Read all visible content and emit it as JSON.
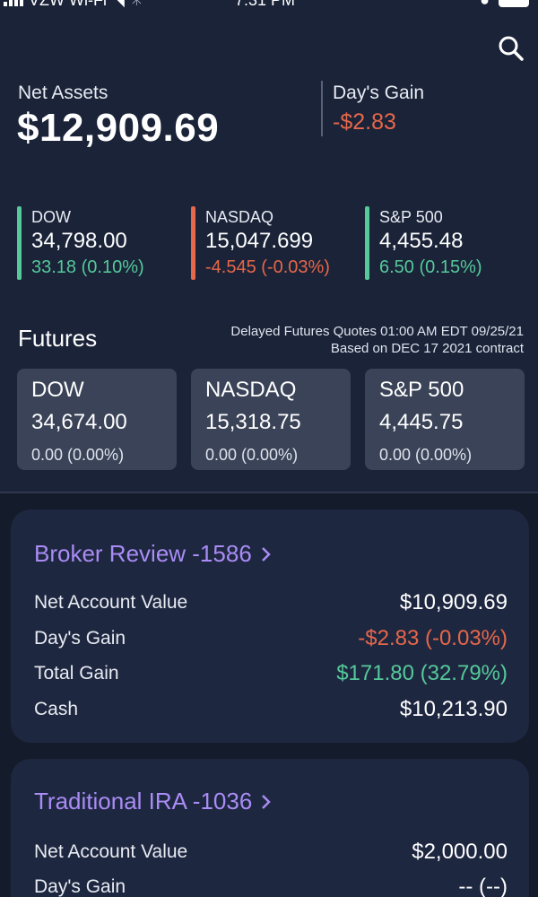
{
  "status_bar": {
    "carrier": "VZW Wi-Fi",
    "time": "7:31 PM"
  },
  "summary": {
    "net_assets_label": "Net Assets",
    "net_assets_value": "$12,909.69",
    "days_gain_label": "Day's Gain",
    "days_gain_value": "-$2.83"
  },
  "indices": [
    {
      "name": "DOW",
      "value": "34,798.00",
      "change": "33.18 (0.10%)",
      "color": "#55c99a"
    },
    {
      "name": "NASDAQ",
      "value": "15,047.699",
      "change": "-4.545 (-0.03%)",
      "color": "#e6674a"
    },
    {
      "name": "S&P 500",
      "value": "4,455.48",
      "change": "6.50 (0.15%)",
      "color": "#55c99a"
    }
  ],
  "futures": {
    "title": "Futures",
    "note_line1": "Delayed Futures Quotes 01:00 AM EDT 09/25/21",
    "note_line2": "Based on DEC 17 2021 contract",
    "cards": [
      {
        "name": "DOW",
        "value": "34,674.00",
        "change": "0.00 (0.00%)"
      },
      {
        "name": "NASDAQ",
        "value": "15,318.75",
        "change": "0.00 (0.00%)"
      },
      {
        "name": "S&P 500",
        "value": "4,445.75",
        "change": "0.00 (0.00%)"
      }
    ]
  },
  "accounts": [
    {
      "title": "Broker Review -1586",
      "rows": [
        {
          "label": "Net Account Value",
          "value": "$10,909.69"
        },
        {
          "label": "Day's Gain",
          "value": "-$2.83 (-0.03%)"
        },
        {
          "label": "Total Gain",
          "value": "$171.80 (32.79%)"
        },
        {
          "label": "Cash",
          "value": "$10,213.90"
        }
      ]
    },
    {
      "title": "Traditional IRA -1036",
      "rows": [
        {
          "label": "Net Account Value",
          "value": "$2,000.00"
        },
        {
          "label": "Day's Gain",
          "value": "-- (--)"
        }
      ]
    }
  ],
  "colors": {
    "positive": "#55c99a",
    "negative": "#e6674a",
    "accent": "#a98cf5"
  }
}
